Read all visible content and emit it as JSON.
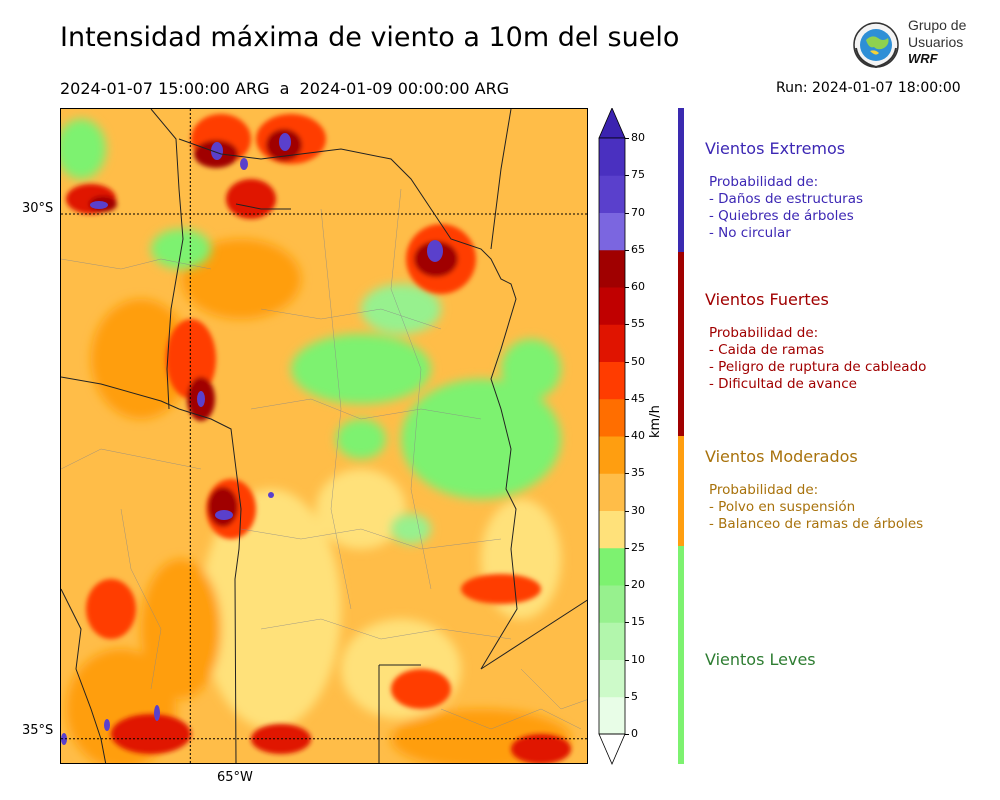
{
  "header": {
    "title": "Intensidad máxima de viento a 10m del suelo",
    "period": "2024-01-07 15:00:00 ARG  a  2024-01-09 00:00:00 ARG",
    "run": "Run: 2024-01-07 18:00:00"
  },
  "logo": {
    "line1": "Grupo de",
    "line2": "Usuarios",
    "line3": "WRF",
    "icon": "globe-seal-icon"
  },
  "map": {
    "lat_labels": [
      "30°S",
      "35°S"
    ],
    "lon_labels": [
      "65°W"
    ],
    "lat_lines": [
      -30,
      -35
    ],
    "lon_lines": [
      -65
    ],
    "extent": {
      "lon_min": -66.2,
      "lon_max": -61.3,
      "lat_min": -35.25,
      "lat_max": -29.0
    }
  },
  "colorbar": {
    "unit": "km/h",
    "ticks": [
      "0",
      "5",
      "10",
      "15",
      "20",
      "25",
      "30",
      "35",
      "40",
      "45",
      "50",
      "55",
      "60",
      "65",
      "70",
      "75",
      "80"
    ],
    "colors": [
      "#e8fde7",
      "#cdfac9",
      "#b2f6ac",
      "#97f18e",
      "#7df270",
      "#ffe17a",
      "#ffbd48",
      "#ff9e10",
      "#ff6e00",
      "#ff3c00",
      "#e01400",
      "#c00000",
      "#a00000",
      "#7b66e0",
      "#5a40cc",
      "#4a30c0"
    ],
    "extend_min_color": "#ffffff",
    "extend_max_color": "#3b23b0"
  },
  "categories": [
    {
      "name": "Vientos Extremos",
      "color": "#3c27b4",
      "lines": [
        "Probabilidad de:",
        "- Daños de estructuras",
        "- Quiebres de árboles",
        "- No circular"
      ]
    },
    {
      "name": "Vientos Fuertes",
      "color": "#a00000",
      "lines": [
        "Probabilidad de:",
        "- Caida de ramas",
        "- Peligro de ruptura de cableado",
        "- Dificultad de avance"
      ]
    },
    {
      "name": "Vientos Moderados",
      "color": "#a8720c",
      "lines": [
        "Probabilidad de:",
        "- Polvo en suspensión",
        "- Balanceo de ramas de árboles"
      ]
    },
    {
      "name": "Vientos Leves",
      "color": "#2e7d32",
      "lines": []
    }
  ],
  "category_bar_colors": [
    "#3a2ab0",
    "#a00000",
    "#ff9e10",
    "#7df270"
  ]
}
